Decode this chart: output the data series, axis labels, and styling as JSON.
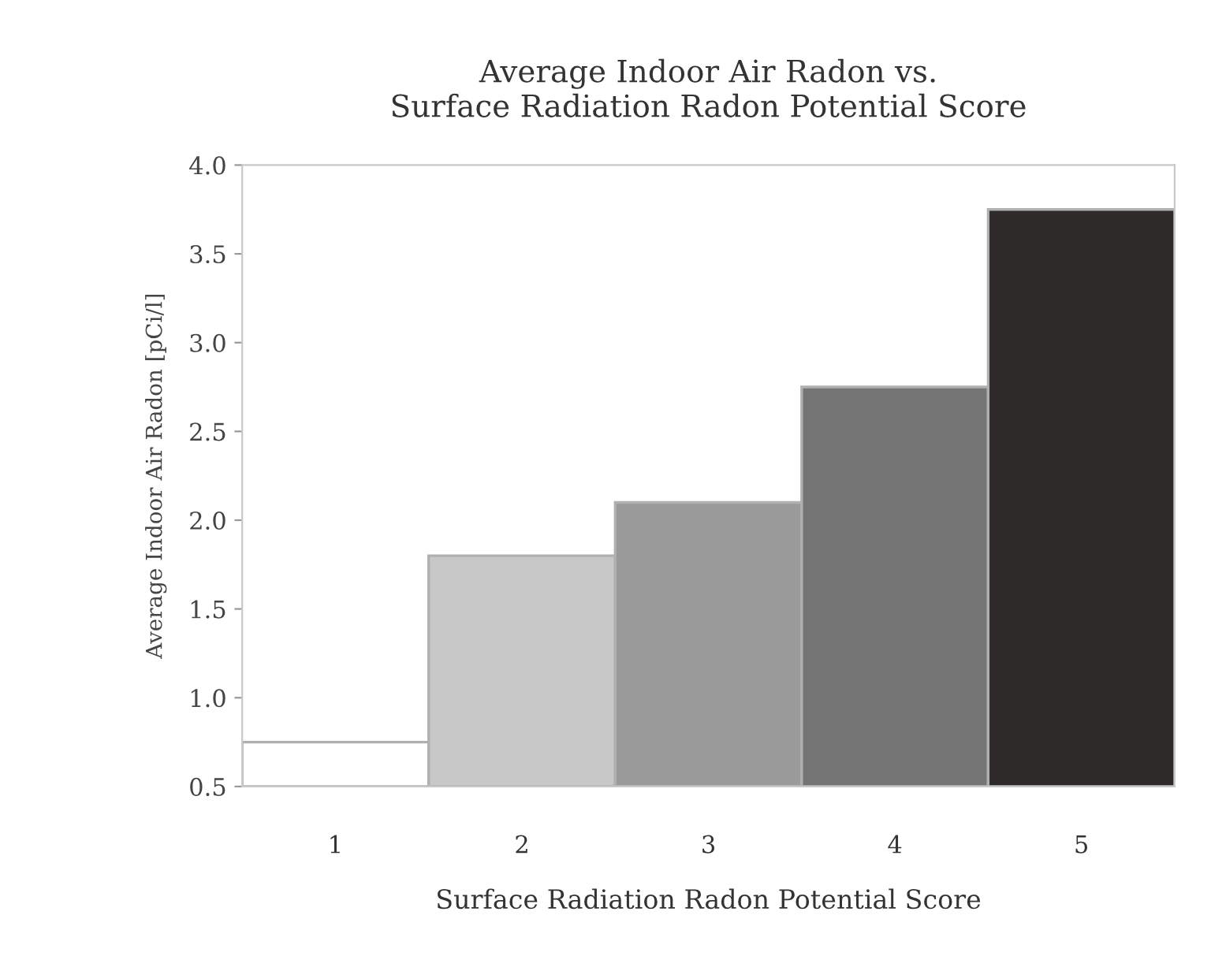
{
  "chart_data": {
    "type": "bar",
    "title": "Average Indoor Air Radon vs.\nSurface Radiation Radon Potential Score",
    "xlabel": "Surface Radiation Radon Potential Score",
    "ylabel": "Average Indoor Air Radon [pCi/l]",
    "categories": [
      "1",
      "2",
      "3",
      "4",
      "5"
    ],
    "values": [
      0.75,
      1.8,
      2.1,
      2.75,
      3.75
    ],
    "colors": [
      "#ffffff",
      "#c8c8c8",
      "#9a9a9a",
      "#757575",
      "#2e2a2a"
    ],
    "ylim": [
      0.5,
      4.0
    ],
    "yticks": [
      0.5,
      {
        "value": 1,
        "label": "1.0"
      },
      1.5,
      {
        "value": 2,
        "label": "2.0"
      },
      2.5,
      {
        "value": 3,
        "label": "3.0"
      },
      3.5,
      {
        "value": 4,
        "label": "4.0"
      }
    ],
    "grid": false
  }
}
